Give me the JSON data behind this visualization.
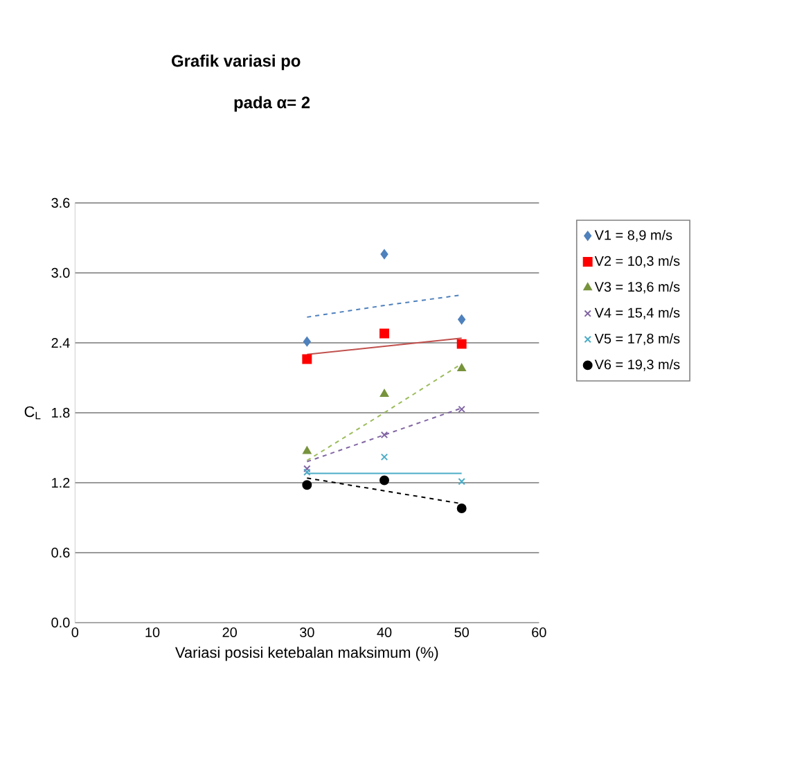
{
  "chart_data": {
    "type": "scatter",
    "title": "Grafik variasi po",
    "subtitle": "pada α= 2",
    "xlabel": "Variasi posisi ketebalan maksimum (%)",
    "ylabel": "C$_{L}$",
    "x": [
      30,
      40,
      50
    ],
    "xlim": [
      0,
      60
    ],
    "xticks": [
      0,
      10,
      20,
      30,
      40,
      50,
      60
    ],
    "ylim": [
      0,
      3.6
    ],
    "yticks": [
      {
        "value": 0,
        "label": "0.0"
      },
      {
        "value": 0.6,
        "label": "0.6"
      },
      {
        "value": 1.2,
        "label": "1.2"
      },
      {
        "value": 1.8,
        "label": "1.8"
      },
      {
        "value": 2.4,
        "label": "2.4"
      },
      {
        "value": 3.0,
        "label": "3.0"
      },
      {
        "value": 3.6,
        "label": "3.6"
      }
    ],
    "grid": "y",
    "legend": "right",
    "series": [
      {
        "name": "V1 = 8,9 m/s",
        "color": "#4f81bd",
        "marker": "diamond",
        "values": [
          2.41,
          3.16,
          2.6
        ]
      },
      {
        "name": "V2 = 10,3 m/s",
        "color": "#ff0000",
        "marker": "square",
        "values": [
          2.26,
          2.48,
          2.39
        ]
      },
      {
        "name": "V3 = 13,6 m/s",
        "color": "#77933c",
        "marker": "triangle",
        "values": [
          1.47,
          1.96,
          2.18
        ]
      },
      {
        "name": "V4 = 15,4 m/s",
        "color": "#8064a2",
        "marker": "cross",
        "values": [
          1.32,
          1.61,
          1.83
        ]
      },
      {
        "name": "V5 = 17,8 m/s",
        "color": "#4bacc6",
        "marker": "cross",
        "values": [
          1.29,
          1.42,
          1.21
        ]
      },
      {
        "name": "V6 = 19,3 m/s",
        "color": "#000000",
        "marker": "circle",
        "values": [
          1.18,
          1.22,
          0.98
        ]
      },
      {
        "type": "line",
        "color": "#4f81bd",
        "marker": "none",
        "line_style": "dashed",
        "values": [
          2.62,
          2.72,
          2.81
        ]
      },
      {
        "type": "line",
        "color": "#c0504d",
        "marker": "none",
        "line_style": "solid",
        "values": [
          2.3,
          2.37,
          2.44
        ]
      },
      {
        "type": "line",
        "color": "#9bbb59",
        "marker": "none",
        "line_style": "dashed",
        "values": [
          1.39,
          1.8,
          2.22
        ]
      },
      {
        "type": "line",
        "color": "#8064a2",
        "marker": "none",
        "line_style": "dashed",
        "values": [
          1.38,
          1.61,
          1.84
        ]
      },
      {
        "type": "line",
        "color": "#4bacc6",
        "marker": "none",
        "line_style": "solid",
        "values": [
          1.28,
          1.28,
          1.28
        ]
      },
      {
        "type": "line",
        "color": "#000000",
        "marker": "none",
        "line_style": "dashed",
        "values": [
          1.24,
          1.13,
          1.02
        ]
      }
    ]
  }
}
